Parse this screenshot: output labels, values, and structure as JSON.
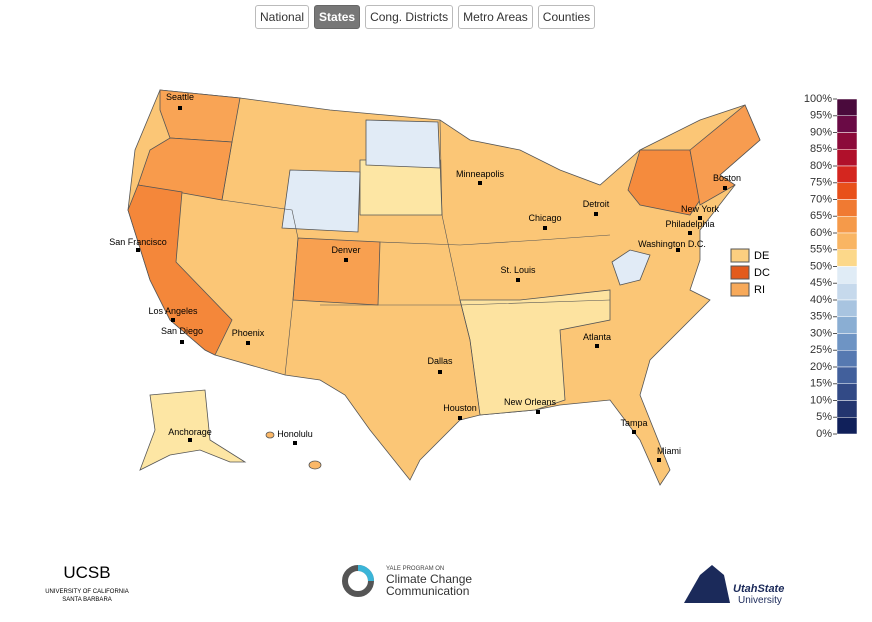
{
  "tabs": [
    "National",
    "States",
    "Cong. Districts",
    "Metro Areas",
    "Counties"
  ],
  "active_tab": 1,
  "cities": [
    "Seattle",
    "San Francisco",
    "Los Angeles",
    "San Diego",
    "Phoenix",
    "Denver",
    "Dallas",
    "Houston",
    "Minneapolis",
    "St. Louis",
    "Chicago",
    "Detroit",
    "New Orleans",
    "Atlanta",
    "Tampa",
    "Miami",
    "Washington D.C.",
    "Philadelphia",
    "New York",
    "Boston",
    "Anchorage",
    "Honolulu"
  ],
  "small_legend": [
    {
      "label": "DE",
      "color": "#fccf80"
    },
    {
      "label": "DC",
      "color": "#e35a1c"
    },
    {
      "label": "RI",
      "color": "#f7a95a"
    }
  ],
  "scale": {
    "labels": [
      "100%",
      "95%",
      "90%",
      "85%",
      "80%",
      "75%",
      "70%",
      "65%",
      "60%",
      "55%",
      "50%",
      "45%",
      "40%",
      "35%",
      "30%",
      "25%",
      "20%",
      "15%",
      "10%",
      "5%",
      "0%"
    ],
    "colors": [
      "#4a0a3c",
      "#6a0a45",
      "#8c0a3a",
      "#b0102b",
      "#d4261f",
      "#e8501a",
      "#f07a32",
      "#f59a4a",
      "#f9b563",
      "#fcd88a",
      "#e0ecf6",
      "#c6d9ec",
      "#a8c4e0",
      "#8aaed3",
      "#6e94c4",
      "#5679b1",
      "#42609c",
      "#324a86",
      "#23356f",
      "#10205a"
    ]
  },
  "logos": {
    "ucsb": "UCSB",
    "ucsb_line1": "UNIVERSITY OF CALIFORNIA",
    "ucsb_line2": "SANTA BARBARA",
    "yale_small": "YALE PROGRAM ON",
    "yale_line1": "Climate Change",
    "yale_line2": "Communication",
    "usu_line1": "UtahState",
    "usu_line2": "University"
  }
}
